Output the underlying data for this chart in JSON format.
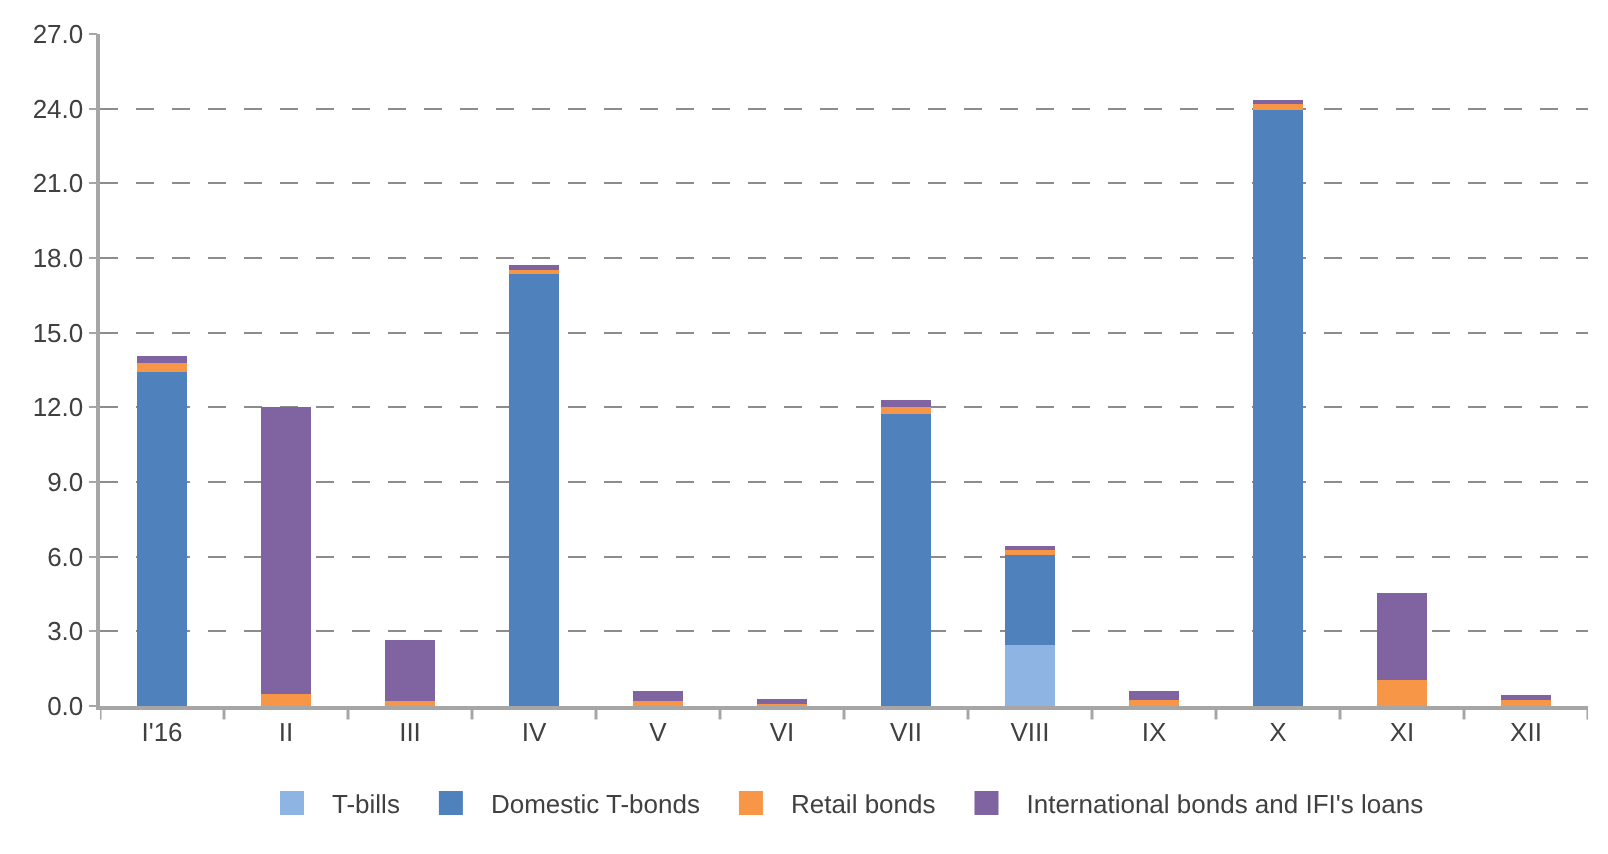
{
  "chart_data": {
    "type": "bar",
    "stacked": true,
    "categories": [
      "I'16",
      "II",
      "III",
      "IV",
      "V",
      "VI",
      "VII",
      "VIII",
      "IX",
      "X",
      "XI",
      "XII"
    ],
    "series": [
      {
        "name": "T-bills",
        "color": "#8eb4e3",
        "values": [
          0,
          0,
          0,
          0,
          0,
          0,
          0,
          2.45,
          0,
          0,
          0,
          0
        ]
      },
      {
        "name": "Domestic T-bonds",
        "color": "#4f81bd",
        "values": [
          13.4,
          0,
          0,
          17.4,
          0,
          0,
          11.75,
          3.6,
          0,
          23.95,
          0,
          0
        ]
      },
      {
        "name": "Retail bonds",
        "color": "#f79646",
        "values": [
          0.4,
          0.5,
          0.2,
          0.1,
          0.2,
          0.15,
          0.25,
          0.25,
          0.25,
          0.3,
          1.05,
          0.3
        ]
      },
      {
        "name": "International bonds and IFI's loans",
        "color": "#8064a2",
        "values": [
          0.25,
          11.5,
          2.45,
          0.2,
          0.4,
          0.15,
          0.3,
          0.1,
          0.35,
          0.1,
          3.5,
          0.15
        ]
      }
    ],
    "ylim": [
      0,
      27
    ],
    "yticks": [
      {
        "value": 0,
        "label": "0.0"
      },
      {
        "value": 3,
        "label": "3.0"
      },
      {
        "value": 6,
        "label": "6.0"
      },
      {
        "value": 9,
        "label": "9.0"
      },
      {
        "value": 12,
        "label": "12.0"
      },
      {
        "value": 15,
        "label": "15.0"
      },
      {
        "value": 18,
        "label": "18.0"
      },
      {
        "value": 21,
        "label": "21.0"
      },
      {
        "value": 24,
        "label": "24.0"
      },
      {
        "value": 27,
        "label": "27.0"
      }
    ],
    "grid": "y",
    "legend": "bottom"
  }
}
